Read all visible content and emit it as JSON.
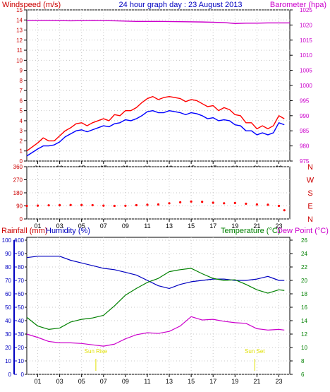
{
  "colors": {
    "background": "#ffffff",
    "plot_bg": "#ffffff",
    "grid": "#c8c8c8",
    "axis": "#000000",
    "windspeed": "#ff0000",
    "gust": "#ff0000",
    "avg_wind": "#0000ff",
    "barometer": "#cc00cc",
    "direction": "#ff0000",
    "humidity": "#0000c0",
    "temperature": "#008000",
    "dewpoint": "#cc00cc",
    "rainfall_axis": "#0000c0",
    "sun_marker": "#e0e000",
    "title": "#0000c0"
  },
  "header": {
    "windspeed_label": "Windspeed (m/s)",
    "title": "24 hour graph day : 23 August 2013",
    "barometer_label": "Barometer (hpa)"
  },
  "x_axis": {
    "ticks": [
      "01",
      "03",
      "05",
      "07",
      "09",
      "11",
      "13",
      "15",
      "17",
      "19",
      "21",
      "23"
    ]
  },
  "panel3_labels": {
    "rainfall": "Rainfall (mm)",
    "humidity": "Humidity (%)",
    "temperature": "Temperature (°C)",
    "dewpoint": "Dew Point (°C)"
  },
  "sun": {
    "rise_label": "Sun Rise",
    "set_label": "Sun Set",
    "rise_hour": 6.3,
    "set_hour": 20.8
  },
  "chart_data": [
    {
      "type": "line",
      "title": "24 hour graph day : 23 August 2013",
      "xlabel": "",
      "x_range": [
        0,
        24
      ],
      "grid": true,
      "y_left": {
        "label": "Windspeed (m/s)",
        "range": [
          0,
          15
        ],
        "ticks": [
          "0",
          "1",
          "2",
          "3",
          "4",
          "5",
          "6",
          "7",
          "8",
          "9",
          "10",
          "11",
          "12",
          "13",
          "14",
          "15"
        ]
      },
      "y_right": {
        "label": "Barometer (hpa)",
        "range": [
          975,
          1025
        ],
        "ticks": [
          "975",
          "980",
          "985",
          "990",
          "995",
          "1000",
          "1005",
          "1010",
          "1015",
          "1020",
          "1025"
        ]
      },
      "series": [
        {
          "axis": "left",
          "color": "#ff0000",
          "x": [
            0,
            1,
            1.5,
            2,
            2.5,
            3,
            3.5,
            4,
            4.5,
            5,
            5.5,
            6,
            6.5,
            7,
            7.5,
            8,
            8.5,
            9,
            9.5,
            10,
            10.5,
            11,
            11.5,
            12,
            12.5,
            13,
            13.5,
            14,
            14.5,
            15,
            15.5,
            16,
            16.5,
            17,
            17.5,
            18,
            18.5,
            19,
            19.5,
            20,
            20.5,
            21,
            21.5,
            22,
            22.5,
            23,
            23.5
          ],
          "values": [
            1.0,
            1.8,
            2.3,
            2.0,
            2.0,
            2.5,
            3.0,
            3.3,
            3.7,
            3.8,
            3.5,
            3.8,
            4.0,
            4.2,
            4.0,
            4.6,
            4.5,
            5.0,
            5.0,
            5.3,
            5.8,
            6.2,
            6.4,
            6.1,
            6.3,
            6.4,
            6.3,
            6.2,
            5.9,
            6.1,
            6.0,
            5.7,
            5.4,
            5.5,
            5.0,
            5.3,
            5.1,
            4.6,
            4.5,
            3.8,
            3.8,
            3.2,
            3.5,
            3.2,
            3.5,
            4.5,
            4.2
          ]
        },
        {
          "axis": "left",
          "color": "#0000ff",
          "x": [
            0,
            1,
            1.5,
            2,
            2.5,
            3,
            3.5,
            4,
            4.5,
            5,
            5.5,
            6,
            6.5,
            7,
            7.5,
            8,
            8.5,
            9,
            9.5,
            10,
            10.5,
            11,
            11.5,
            12,
            12.5,
            13,
            13.5,
            14,
            14.5,
            15,
            15.5,
            16,
            16.5,
            17,
            17.5,
            18,
            18.5,
            19,
            19.5,
            20,
            20.5,
            21,
            21.5,
            22,
            22.5,
            23,
            23.5
          ],
          "values": [
            0.5,
            1.2,
            1.5,
            1.5,
            1.6,
            1.9,
            2.4,
            2.7,
            3.0,
            3.1,
            2.9,
            3.1,
            3.3,
            3.5,
            3.4,
            3.7,
            3.8,
            4.1,
            4.0,
            4.2,
            4.5,
            4.9,
            5.0,
            4.8,
            4.8,
            5.0,
            4.9,
            4.8,
            4.6,
            4.8,
            4.7,
            4.5,
            4.2,
            4.3,
            4.0,
            4.1,
            4.0,
            3.6,
            3.5,
            3.0,
            3.0,
            2.6,
            2.8,
            2.6,
            2.8,
            3.8,
            3.6
          ]
        },
        {
          "axis": "right",
          "color": "#cc00cc",
          "x": [
            0,
            2,
            4,
            6,
            8,
            10,
            12,
            14,
            16,
            18,
            19,
            20,
            21,
            22,
            23,
            24
          ],
          "values": [
            1021.5,
            1021.5,
            1021.4,
            1021.5,
            1021.4,
            1021.2,
            1021.2,
            1021.1,
            1021.0,
            1020.8,
            1020.5,
            1020.6,
            1020.6,
            1020.7,
            1020.7,
            1020.7
          ]
        }
      ]
    },
    {
      "type": "scatter",
      "title": "",
      "x_range": [
        0,
        24
      ],
      "y_left": {
        "label": "",
        "range": [
          0,
          360
        ],
        "ticks": [
          "0",
          "90",
          "180",
          "270",
          "360"
        ]
      },
      "y_right_labels": [
        "N",
        "W",
        "S",
        "E",
        "N"
      ],
      "series": [
        {
          "color": "#ff0000",
          "x": [
            0,
            1,
            2,
            3,
            4,
            5,
            6,
            7,
            8,
            9,
            10,
            11,
            12,
            13,
            14,
            15,
            16,
            17,
            18,
            19,
            20,
            21,
            22,
            23,
            23.5
          ],
          "values": [
            90,
            92,
            94,
            95,
            96,
            96,
            95,
            92,
            90,
            91,
            95,
            98,
            100,
            108,
            115,
            120,
            118,
            112,
            108,
            110,
            105,
            100,
            98,
            90,
            60
          ]
        }
      ]
    },
    {
      "type": "line",
      "title": "",
      "x_range": [
        0,
        24
      ],
      "y_left_rain": {
        "label": "Rainfall (mm)",
        "range": [
          0,
          100
        ],
        "ticks": [
          "0",
          "10",
          "20",
          "30",
          "40",
          "50",
          "60",
          "70",
          "80",
          "90",
          "100"
        ]
      },
      "y_left_hum": {
        "label": "Humidity (%)",
        "range": [
          0,
          100
        ],
        "ticks": [
          "0",
          "10",
          "20",
          "30",
          "40",
          "50",
          "60",
          "70",
          "80",
          "90",
          "100"
        ]
      },
      "y_right": {
        "label": "Temperature (°C)",
        "range": [
          6,
          26
        ],
        "ticks": [
          "6",
          "8",
          "10",
          "12",
          "14",
          "16",
          "18",
          "20",
          "22",
          "24",
          "26"
        ]
      },
      "series": [
        {
          "axis": "humidity",
          "color": "#0000c0",
          "x": [
            0,
            1,
            2,
            3,
            4,
            5,
            6,
            7,
            8,
            9,
            10,
            11,
            12,
            13,
            14,
            15,
            16,
            17,
            18,
            19,
            20,
            21,
            22,
            23,
            23.5
          ],
          "values": [
            87,
            88,
            88,
            88,
            85,
            83,
            81,
            79,
            78,
            76,
            74,
            70,
            66,
            64,
            67,
            69,
            70,
            71,
            71,
            70,
            70,
            71,
            73,
            70,
            70
          ]
        },
        {
          "axis": "temperature",
          "color": "#008000",
          "x": [
            0,
            1,
            2,
            3,
            4,
            5,
            6,
            7,
            8,
            9,
            10,
            11,
            12,
            13,
            14,
            15,
            16,
            17,
            18,
            19,
            20,
            21,
            22,
            23,
            23.5
          ],
          "values": [
            14.5,
            13.2,
            12.7,
            12.9,
            13.8,
            14.2,
            14.4,
            14.8,
            16.2,
            17.8,
            18.8,
            19.7,
            20.3,
            21.3,
            21.6,
            21.8,
            21.0,
            20.3,
            20.0,
            20.1,
            19.4,
            18.6,
            18.1,
            18.6,
            18.5
          ]
        },
        {
          "axis": "temperature",
          "color": "#cc00cc",
          "x": [
            0,
            1,
            2,
            3,
            4,
            5,
            6,
            7,
            8,
            9,
            10,
            11,
            12,
            13,
            14,
            15,
            16,
            17,
            18,
            19,
            20,
            21,
            22,
            23,
            23.5
          ],
          "values": [
            12.0,
            11.5,
            10.9,
            10.7,
            10.7,
            10.6,
            10.4,
            10.2,
            10.5,
            11.3,
            11.9,
            12.2,
            12.1,
            12.4,
            13.2,
            14.6,
            14.1,
            14.2,
            13.9,
            13.7,
            13.6,
            12.8,
            12.6,
            12.7,
            12.6
          ]
        }
      ]
    }
  ]
}
